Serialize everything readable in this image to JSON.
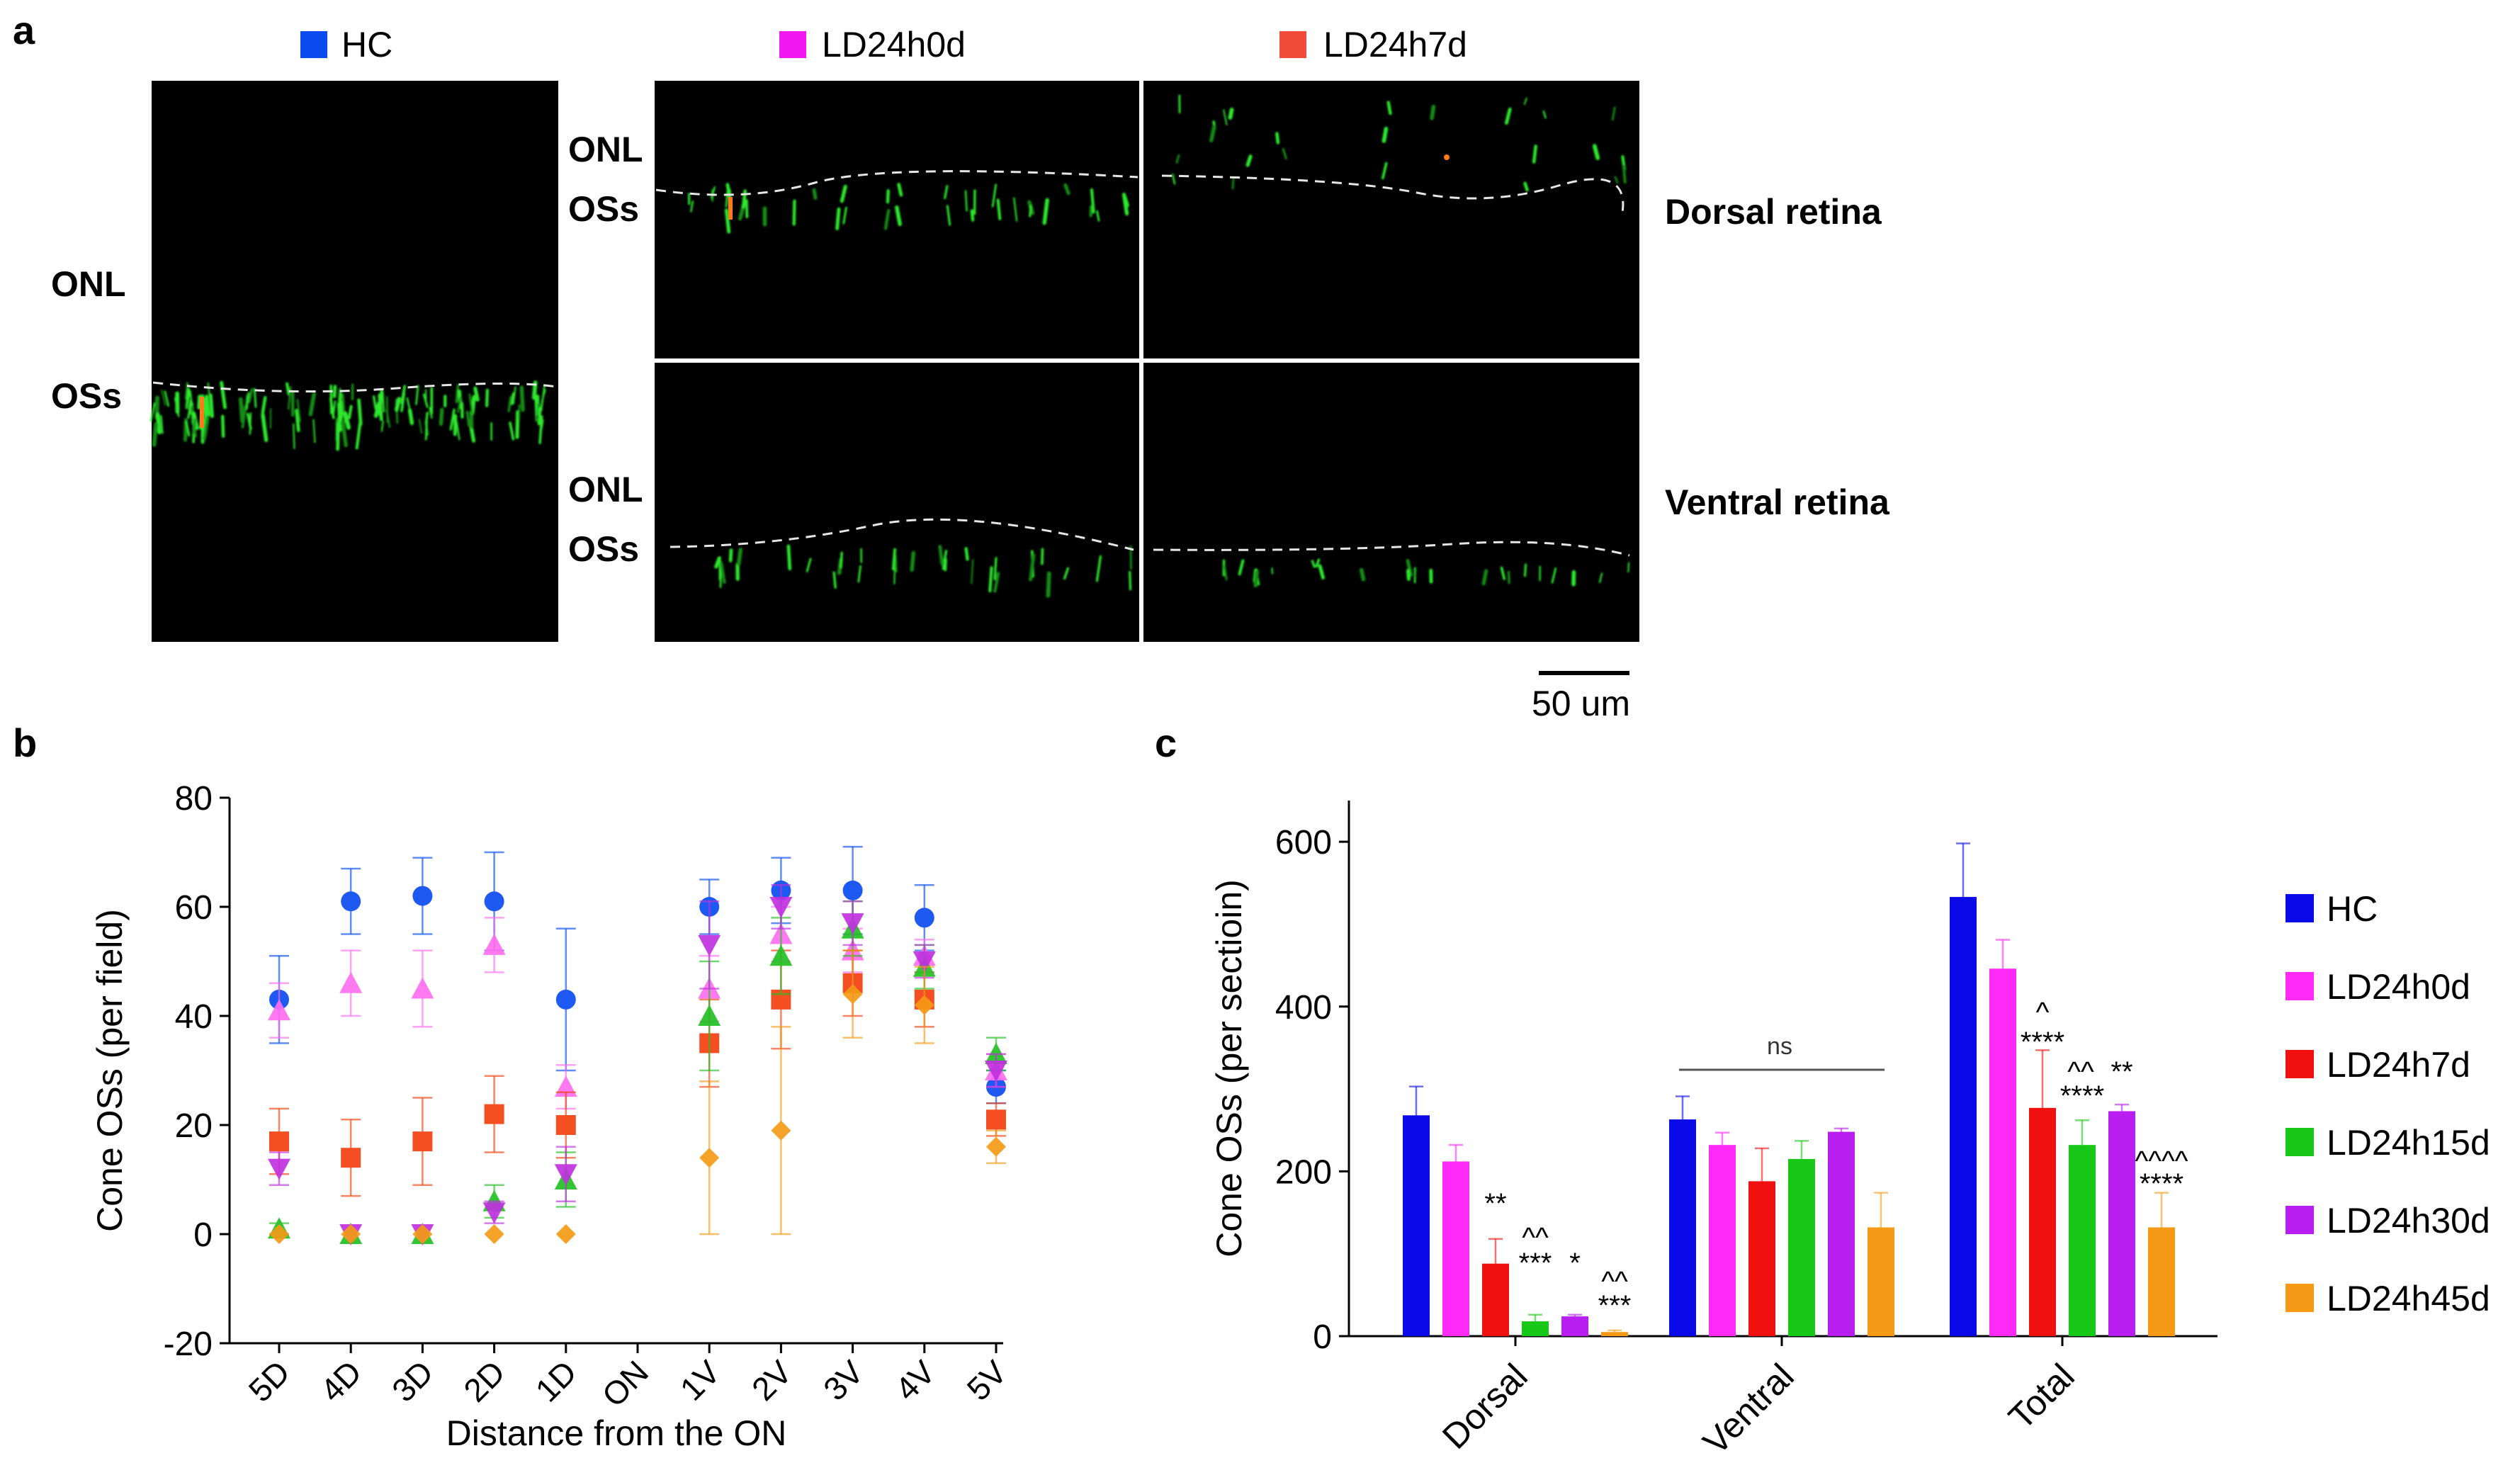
{
  "panel_a": {
    "letter": "a",
    "legend": [
      {
        "label": "HC",
        "color": "#0a4cf0"
      },
      {
        "label": "LD24h0d",
        "color": "#f01af0"
      },
      {
        "label": "LD24h7d",
        "color": "#f04a3a"
      }
    ],
    "labels": {
      "onl": "ONL",
      "oss": "OSs",
      "dorsal": "Dorsal retina",
      "ventral": "Ventral retina"
    },
    "scale_bar": "50 um"
  },
  "chart_data": [
    {
      "type": "scatter",
      "panel": "b",
      "xlabel": "Distance from the ON",
      "ylabel": "Cone OSs (per field)",
      "ylim": [
        -20,
        80
      ],
      "yticks": [
        -20,
        0,
        20,
        40,
        60,
        80
      ],
      "categories": [
        "5D",
        "4D",
        "3D",
        "2D",
        "1D",
        "ON",
        "1V",
        "2V",
        "3V",
        "4V",
        "5V"
      ],
      "series": [
        {
          "name": "HC",
          "color": "#0a4cf0",
          "marker": "circle",
          "values": [
            43,
            61,
            62,
            61,
            43,
            null,
            60,
            63,
            63,
            58,
            27
          ],
          "err": [
            8,
            6,
            7,
            9,
            13,
            null,
            5,
            6,
            8,
            6,
            3
          ]
        },
        {
          "name": "LD24h0d",
          "color": "#ff6ef0",
          "marker": "triangle-up",
          "values": [
            41,
            46,
            45,
            53,
            27,
            null,
            45,
            55,
            52,
            51,
            30
          ],
          "err": [
            5,
            6,
            7,
            5,
            4,
            null,
            6,
            5,
            4,
            3,
            3
          ]
        },
        {
          "name": "LD24h7d",
          "color": "#f2400f",
          "marker": "square",
          "values": [
            17,
            14,
            17,
            22,
            20,
            null,
            35,
            43,
            46,
            43,
            21
          ],
          "err": [
            6,
            7,
            8,
            7,
            6,
            null,
            8,
            9,
            6,
            5,
            3
          ]
        },
        {
          "name": "LD24h15d",
          "color": "#22c022",
          "marker": "triangle-up",
          "values": [
            1,
            0,
            0,
            6,
            10,
            null,
            40,
            51,
            56,
            49,
            33
          ],
          "err": [
            1,
            0,
            0,
            3,
            5,
            null,
            10,
            7,
            5,
            4,
            3
          ]
        },
        {
          "name": "LD24h30d",
          "color": "#c030e0",
          "marker": "triangle-down",
          "values": [
            12,
            0,
            0,
            4,
            11,
            null,
            53,
            60,
            57,
            50,
            30
          ],
          "err": [
            3,
            0,
            0,
            2,
            5,
            null,
            8,
            4,
            4,
            3,
            3
          ]
        },
        {
          "name": "LD24h45d",
          "color": "#f59a16",
          "marker": "diamond",
          "values": [
            0,
            0,
            0,
            0,
            0,
            null,
            14,
            19,
            44,
            42,
            16
          ],
          "err": [
            0,
            0,
            0,
            0,
            0,
            null,
            14,
            19,
            8,
            7,
            3
          ]
        }
      ]
    },
    {
      "type": "bar",
      "panel": "c",
      "ylabel": "Cone OSs (per sectioin)",
      "ylim": [
        0,
        650
      ],
      "yticks": [
        0,
        200,
        400,
        600
      ],
      "categories": [
        "Dorsal",
        "Ventral",
        "Total"
      ],
      "series": [
        {
          "name": "HC",
          "color": "#0a0ae8",
          "values": [
            268,
            263,
            533
          ],
          "err": [
            35,
            28,
            65
          ]
        },
        {
          "name": "LD24h0d",
          "color": "#ff2af5",
          "values": [
            212,
            232,
            446
          ],
          "err": [
            20,
            15,
            35
          ]
        },
        {
          "name": "LD24h7d",
          "color": "#f01010",
          "values": [
            88,
            188,
            277
          ],
          "err": [
            30,
            40,
            70
          ]
        },
        {
          "name": "LD24h15d",
          "color": "#18c818",
          "values": [
            18,
            215,
            232
          ],
          "err": [
            8,
            22,
            30
          ]
        },
        {
          "name": "LD24h30d",
          "color": "#b81ef0",
          "values": [
            24,
            248,
            273
          ],
          "err": [
            2,
            4,
            8
          ]
        },
        {
          "name": "LD24h45d",
          "color": "#f59a16",
          "values": [
            5,
            132,
            132
          ],
          "err": [
            2,
            42,
            42
          ]
        }
      ],
      "annotations": {
        "ns": "ns",
        "dorsal": [
          "**",
          "^^",
          "***",
          "*",
          "^^",
          "***"
        ],
        "total": [
          "^",
          "****",
          "^^",
          "****",
          "**",
          "^^^^",
          "****"
        ]
      }
    }
  ],
  "panel_b_letter": "b",
  "panel_c_letter": "c"
}
